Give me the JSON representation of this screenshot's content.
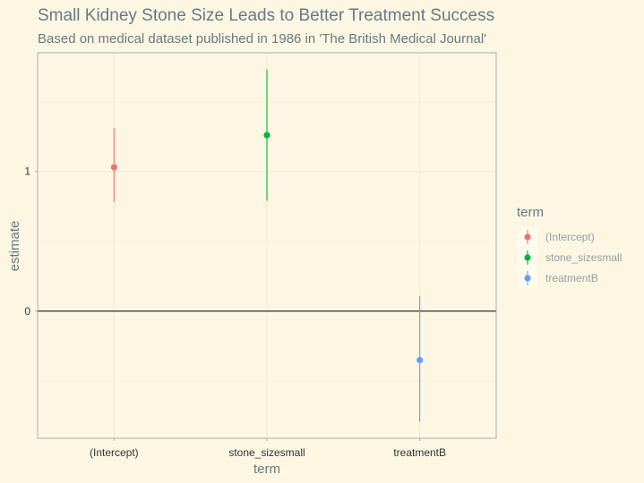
{
  "chart_data": {
    "type": "scatter",
    "title": "Small Kidney Stone Size Leads to Better Treatment Success",
    "subtitle": "Based on medical dataset published in 1986 in 'The British Medical Journal'",
    "xlabel": "term",
    "ylabel": "estimate",
    "categories": [
      "(Intercept)",
      "stone_sizesmall",
      "treatmentB"
    ],
    "ylim": [
      -0.91,
      1.85
    ],
    "y_ticks": [
      0,
      1
    ],
    "y_tick_labels": [
      "0",
      "1"
    ],
    "grid": true,
    "hline": 0,
    "legend": {
      "title": "term",
      "placement": "right",
      "entries": [
        "(Intercept)",
        "stone_sizesmall",
        "treatmentB"
      ]
    },
    "series": [
      {
        "name": "(Intercept)",
        "category": "(Intercept)",
        "estimate": 1.03,
        "low": 0.78,
        "high": 1.31,
        "color": "#e8766f"
      },
      {
        "name": "stone_sizesmall",
        "category": "stone_sizesmall",
        "estimate": 1.26,
        "low": 0.79,
        "high": 1.73,
        "color": "#00b33c"
      },
      {
        "name": "treatmentB",
        "category": "treatmentB",
        "estimate": -0.35,
        "low": -0.79,
        "high": 0.11,
        "color": "#619cff"
      }
    ]
  }
}
